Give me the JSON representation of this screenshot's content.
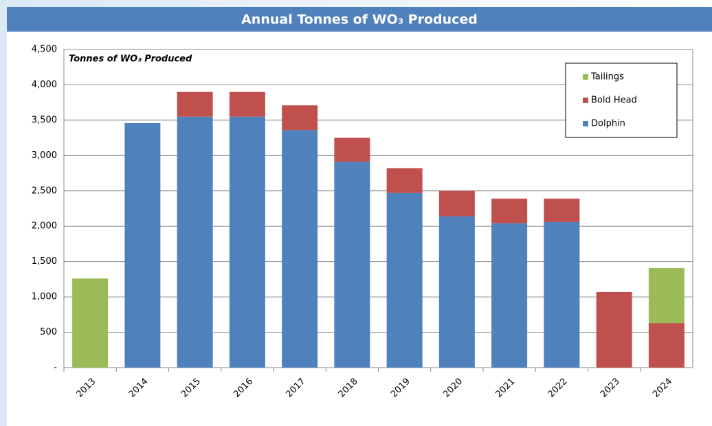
{
  "chart_data": {
    "type": "stacked_bar",
    "title": "Annual Tonnes of WO₃ Produced",
    "y_label": "Tonnes  of WO₃ Produced",
    "categories": [
      "2013",
      "2014",
      "2015",
      "2016",
      "2017",
      "2018",
      "2019",
      "2020",
      "2021",
      "2022",
      "2023",
      "2024"
    ],
    "series": [
      {
        "name": "Dolphin",
        "color": "#4f81bd",
        "values": [
          0,
          3460,
          3550,
          3550,
          3360,
          2910,
          2470,
          2140,
          2040,
          2060,
          0,
          0
        ]
      },
      {
        "name": "Bold Head",
        "color": "#c0504d",
        "values": [
          0,
          0,
          350,
          350,
          350,
          340,
          350,
          360,
          350,
          330,
          1070,
          630
        ]
      },
      {
        "name": "Tailings",
        "color": "#9bbb59",
        "values": [
          1260,
          0,
          0,
          0,
          0,
          0,
          0,
          0,
          0,
          0,
          0,
          780
        ]
      }
    ],
    "ylim": [
      0,
      4500
    ],
    "yticks": [
      {
        "value": 0,
        "label": "-"
      },
      500,
      {
        "value": 1000,
        "label": "1,000"
      },
      {
        "value": 1500,
        "label": "1,500"
      },
      {
        "value": 2000,
        "label": "2,000"
      },
      {
        "value": 2500,
        "label": "2,500"
      },
      {
        "value": 3000,
        "label": "3,000"
      },
      {
        "value": 3500,
        "label": "3,500"
      },
      {
        "value": 4000,
        "label": "4,000"
      },
      {
        "value": 4500,
        "label": "4,500"
      }
    ],
    "grid": true,
    "legend": "top-right"
  }
}
